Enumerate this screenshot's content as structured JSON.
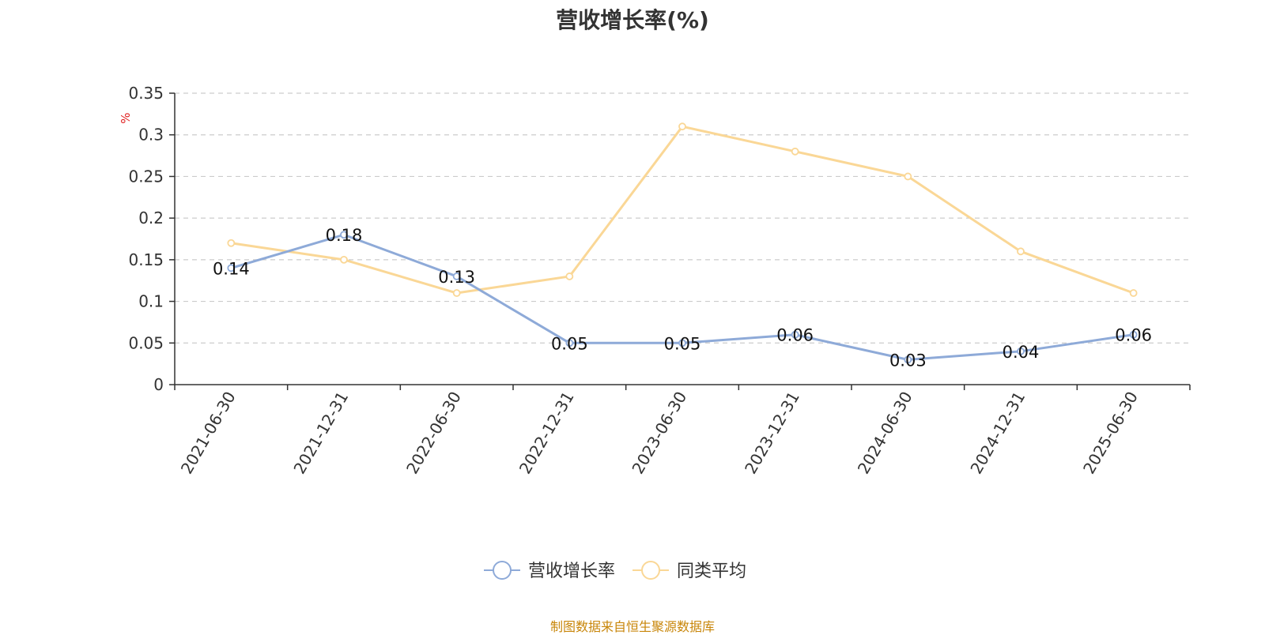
{
  "chart_data": {
    "type": "line",
    "title": "营收增长率(%)",
    "ylabel": "%",
    "xlabel": "",
    "ylim": [
      0,
      0.35
    ],
    "yticks": [
      0,
      0.05,
      0.1,
      0.15,
      0.2,
      0.25,
      0.3,
      0.35
    ],
    "categories": [
      "2021-06-30",
      "2021-12-31",
      "2022-06-30",
      "2022-12-31",
      "2023-06-30",
      "2023-12-31",
      "2024-06-30",
      "2024-12-31",
      "2025-06-30"
    ],
    "series": [
      {
        "name": "营收增长率",
        "color": "#8eaad8",
        "values": [
          0.14,
          0.18,
          0.13,
          0.05,
          0.05,
          0.06,
          0.03,
          0.04,
          0.06
        ],
        "show_labels": true
      },
      {
        "name": "同类平均",
        "color": "#fad796",
        "values": [
          0.17,
          0.15,
          0.11,
          0.13,
          0.31,
          0.28,
          0.25,
          0.16,
          0.11
        ],
        "show_labels": false
      }
    ],
    "grid": true,
    "legend_position": "bottom-center"
  },
  "source_note": "制图数据来自恒生聚源数据库",
  "colors": {
    "axis": "#333333",
    "grid": "#cccccc",
    "ylabel": "#e02020",
    "source": "#c8860a"
  }
}
